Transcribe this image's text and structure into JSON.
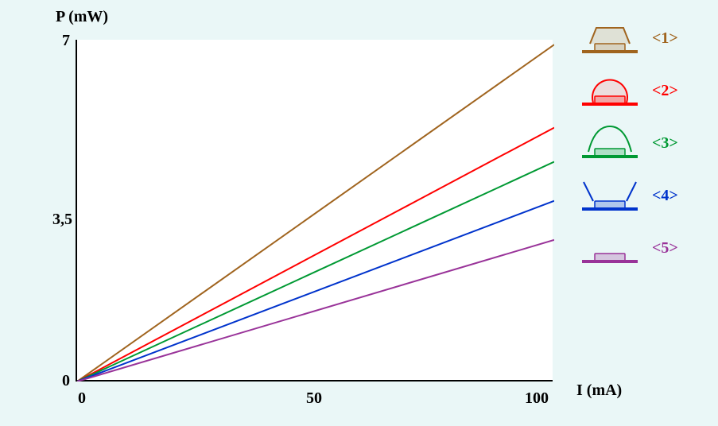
{
  "chart": {
    "type": "line",
    "background_color": "#eaf7f7",
    "plot_bg": "#ffffff",
    "axis_color": "#000000",
    "axis_width": 2.5,
    "x_label": "I (mA)",
    "y_label": "P (mW)",
    "xlim": [
      0,
      100
    ],
    "ylim": [
      0,
      7
    ],
    "xticks": [
      0,
      50,
      100
    ],
    "yticks": [
      "0",
      "3,5",
      "7"
    ],
    "label_fontsize": 20,
    "label_fontweight": "bold",
    "line_width": 2,
    "series": [
      {
        "id": 1,
        "color": "#a0641e",
        "y_at_xmax": 6.9
      },
      {
        "id": 2,
        "color": "#ff0000",
        "y_at_xmax": 5.2
      },
      {
        "id": 3,
        "color": "#009933",
        "y_at_xmax": 4.5
      },
      {
        "id": 4,
        "color": "#0033cc",
        "y_at_xmax": 3.7
      },
      {
        "id": 5,
        "color": "#993399",
        "y_at_xmax": 2.9
      }
    ]
  },
  "legend": {
    "items": [
      {
        "label": "<1>",
        "color": "#a0641e",
        "shape": "trapezoid"
      },
      {
        "label": "<2>",
        "color": "#ff0000",
        "shape": "circle"
      },
      {
        "label": "<3>",
        "color": "#009933",
        "shape": "dome_legs"
      },
      {
        "label": "<4>",
        "color": "#0033cc",
        "shape": "slant"
      },
      {
        "label": "<5>",
        "color": "#993399",
        "shape": "flat"
      }
    ],
    "label_fontsize": 20,
    "label_fontweight": "bold"
  }
}
